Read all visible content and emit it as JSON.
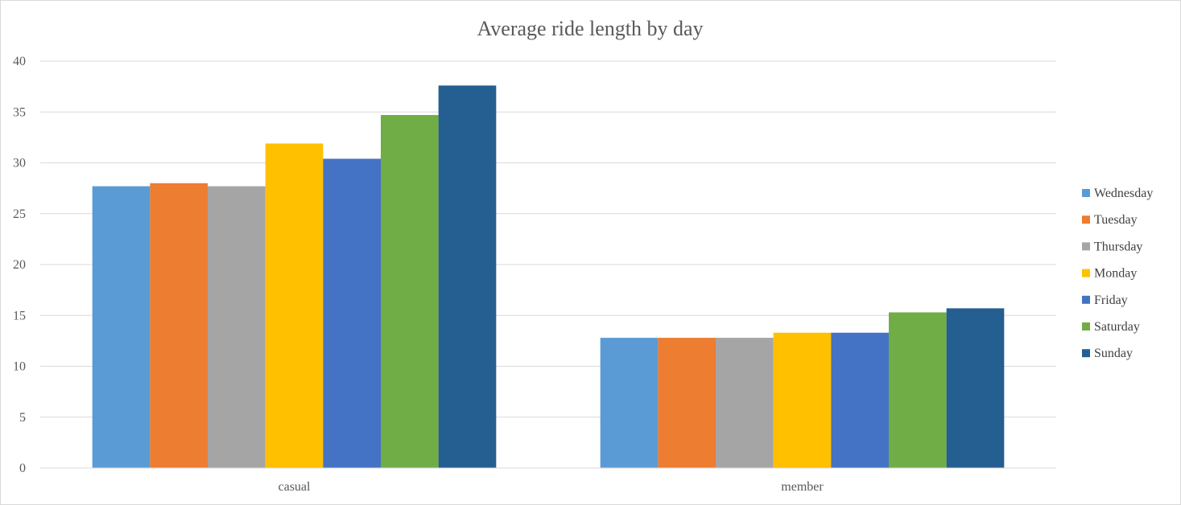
{
  "chart_data": {
    "type": "bar",
    "title": "Average ride length by day",
    "xlabel": "",
    "ylabel": "",
    "categories": [
      "casual",
      "member"
    ],
    "ylim": [
      0,
      40
    ],
    "yticks": [
      0,
      5,
      10,
      15,
      20,
      25,
      30,
      35,
      40
    ],
    "grid": true,
    "legend_position": "right",
    "series": [
      {
        "name": "Wednesday",
        "color": "#5B9BD5",
        "values": [
          27.7,
          12.8
        ]
      },
      {
        "name": "Tuesday",
        "color": "#ED7D31",
        "values": [
          28.0,
          12.8
        ]
      },
      {
        "name": "Thursday",
        "color": "#A5A5A5",
        "values": [
          27.7,
          12.8
        ]
      },
      {
        "name": "Monday",
        "color": "#FFC000",
        "values": [
          31.9,
          13.3
        ]
      },
      {
        "name": "Friday",
        "color": "#4472C4",
        "values": [
          30.4,
          13.3
        ]
      },
      {
        "name": "Saturday",
        "color": "#70AD47",
        "values": [
          34.7,
          15.3
        ]
      },
      {
        "name": "Sunday",
        "color": "#255E91",
        "values": [
          37.6,
          15.7
        ]
      }
    ]
  }
}
